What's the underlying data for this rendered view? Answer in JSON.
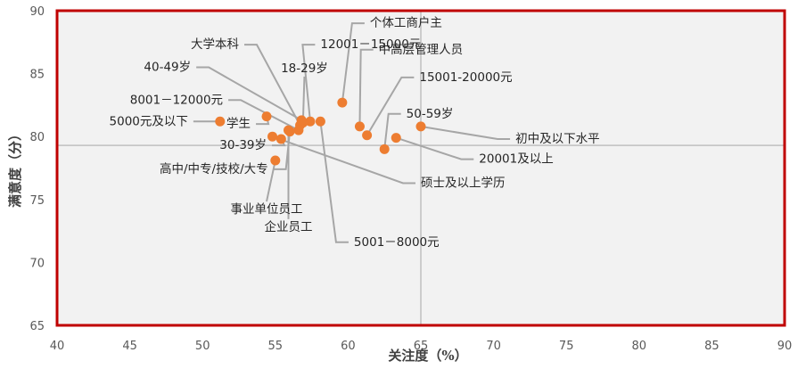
{
  "chart_data": {
    "type": "scatter",
    "xlabel": "关注度（%）",
    "ylabel": "满意度（分）",
    "xlim": [
      40,
      90
    ],
    "ylim": [
      65,
      90
    ],
    "xticks": [
      "40",
      "45",
      "50",
      "55",
      "60",
      "65",
      "70",
      "75",
      "80",
      "85",
      "90"
    ],
    "yticks": [
      "65",
      "70",
      "75",
      "80",
      "85",
      "90"
    ],
    "reference_lines": {
      "x": 65,
      "y": 79.3
    },
    "grid": false,
    "colors": {
      "points": "#ed7d31",
      "frame": "#c00000",
      "plot_bg": "#f2f2f2",
      "leader": "#a6a6a6"
    },
    "points": [
      {
        "label": "大学本科",
        "x": 56.7,
        "y": 80.9,
        "lx": 52.5,
        "ly": 87.3
      },
      {
        "label": "12001－15000元",
        "x": 57.4,
        "y": 81.2,
        "lx": 58.1,
        "ly": 87.3
      },
      {
        "label": "个体工商户主",
        "x": 59.6,
        "y": 82.7,
        "lx": 61.5,
        "ly": 89.0
      },
      {
        "label": "18-29岁",
        "x": 56.9,
        "y": 81.1,
        "lx": 57.0,
        "ly": 85.4
      },
      {
        "label": "中高层管理人员",
        "x": 60.8,
        "y": 80.8,
        "lx": 62.1,
        "ly": 86.9
      },
      {
        "label": "40-49岁",
        "x": 56.8,
        "y": 81.3,
        "lx": 49.2,
        "ly": 85.5
      },
      {
        "label": "15001-20000元",
        "x": 61.3,
        "y": 80.1,
        "lx": 64.9,
        "ly": 84.7
      },
      {
        "label": "8001－12000元",
        "x": 56.6,
        "y": 80.5,
        "lx": 51.4,
        "ly": 82.9
      },
      {
        "label": "50-59岁",
        "x": 62.5,
        "y": 79.0,
        "lx": 64.0,
        "ly": 81.8
      },
      {
        "label": "5000元及以下",
        "x": 51.2,
        "y": 81.2,
        "lx": 49.0,
        "ly": 81.2
      },
      {
        "label": "学生",
        "x": 54.4,
        "y": 81.6,
        "lx": 53.3,
        "ly": 81.0
      },
      {
        "label": "初中及以下水平",
        "x": 65.0,
        "y": 80.8,
        "lx": 71.5,
        "ly": 79.8
      },
      {
        "label": "30-39岁",
        "x": 55.4,
        "y": 79.8,
        "lx": 54.4,
        "ly": 79.3
      },
      {
        "label": "20001及以上",
        "x": 63.3,
        "y": 79.9,
        "lx": 69.0,
        "ly": 78.2
      },
      {
        "label": "高中/中专/技校/大专",
        "x": 56.0,
        "y": 80.4,
        "lx": 54.5,
        "ly": 77.4
      },
      {
        "label": "硕士及以上学历",
        "x": 54.8,
        "y": 80.0,
        "lx": 65.0,
        "ly": 76.3
      },
      {
        "label": "事业单位员工",
        "x": 55.0,
        "y": 78.1,
        "lx": 54.4,
        "ly": 74.2
      },
      {
        "label": "企业员工",
        "x": 55.9,
        "y": 80.5,
        "lx": 55.9,
        "ly": 72.8
      },
      {
        "label": "5001－8000元",
        "x": 58.1,
        "y": 81.2,
        "lx": 60.4,
        "ly": 71.6
      }
    ]
  }
}
